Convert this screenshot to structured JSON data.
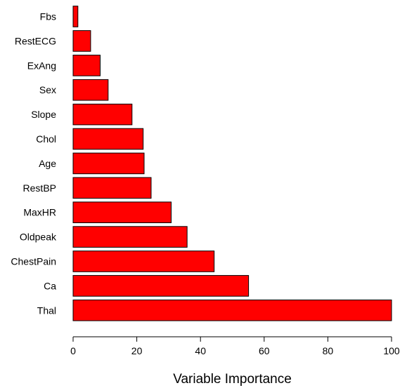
{
  "chart_data": {
    "type": "bar",
    "orientation": "horizontal",
    "title": "",
    "xlabel": "Variable Importance",
    "ylabel": "",
    "xlim": [
      0,
      100
    ],
    "xticks": [
      0,
      20,
      40,
      60,
      80,
      100
    ],
    "grid": false,
    "legend": "none",
    "bar_color": "#ff0000",
    "bar_edge_color": "#000000",
    "categories": [
      "Fbs",
      "RestECG",
      "ExAng",
      "Sex",
      "Slope",
      "Chol",
      "Age",
      "RestBP",
      "MaxHR",
      "Oldpeak",
      "ChestPain",
      "Ca",
      "Thal"
    ],
    "values": [
      1.5,
      5.5,
      8.5,
      11,
      18.5,
      22,
      22.3,
      24.5,
      30.8,
      35.8,
      44.3,
      55.1,
      100
    ]
  }
}
